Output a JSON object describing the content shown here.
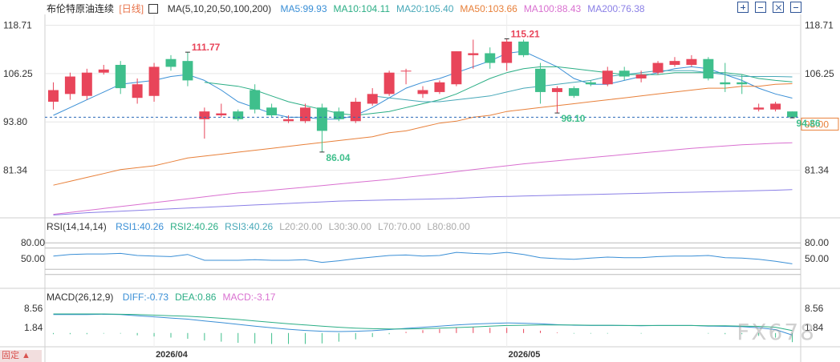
{
  "header": {
    "symbol": "布伦特原油连续",
    "period": "[日线]",
    "ma_label": "MA(5,10,20,50,100,200)",
    "ma_values": [
      {
        "text": "MA5:99.93",
        "color": "#3a8fd6"
      },
      {
        "text": "MA10:104.11",
        "color": "#2bae85"
      },
      {
        "text": "MA20:105.40",
        "color": "#47a8b8"
      },
      {
        "text": "MA50:103.66",
        "color": "#e8803a"
      },
      {
        "text": "MA100:88.43",
        "color": "#d970d0"
      },
      {
        "text": "MA200:76.38",
        "color": "#8a7fe6"
      }
    ]
  },
  "rsi_header": {
    "label": "RSI(14,14,14)",
    "values": [
      {
        "text": "RSI1:40.26",
        "color": "#3a8fd6"
      },
      {
        "text": "RSI2:40.26",
        "color": "#2bae85"
      },
      {
        "text": "RSI3:40.26",
        "color": "#47a8b8"
      },
      {
        "text": "L20:20.00",
        "color": "#aaaaaa"
      },
      {
        "text": "L30:30.00",
        "color": "#aaaaaa"
      },
      {
        "text": "L70:70.00",
        "color": "#aaaaaa"
      },
      {
        "text": "L80:80.00",
        "color": "#aaaaaa"
      }
    ]
  },
  "macd_header": {
    "label": "MACD(26,12,9)",
    "values": [
      {
        "text": "DIFF:-0.73",
        "color": "#3a8fd6"
      },
      {
        "text": "DEA:0.86",
        "color": "#2bae85"
      },
      {
        "text": "MACD:-3.17",
        "color": "#d970d0"
      }
    ]
  },
  "watermark": "FX678",
  "bottom_button": "固定 ▲",
  "colors": {
    "up": "#e8455a",
    "down": "#3fbf8c",
    "grid": "#e6e6e6",
    "dash": "#2a6ab8",
    "current_price": "#e8803a"
  },
  "chart_data": {
    "type": "candlestick",
    "title": "布伦特原油连续 [日线]",
    "price_axis": {
      "ticks": [
        118.71,
        106.25,
        93.8,
        81.34
      ],
      "ylim": [
        69.5,
        121.5
      ]
    },
    "x_labels": [
      {
        "index": 6,
        "label": "2026/04"
      },
      {
        "index": 27,
        "label": "2026/05"
      }
    ],
    "current_price": 95.0,
    "annotations": [
      {
        "index": 8,
        "price": 111.77,
        "label": "111.77",
        "type": "high"
      },
      {
        "index": 16,
        "price": 86.04,
        "label": "86.04",
        "type": "low"
      },
      {
        "index": 27,
        "price": 115.21,
        "label": "115.21",
        "type": "high"
      },
      {
        "index": 30,
        "price": 96.1,
        "label": "96.10",
        "type": "low"
      },
      {
        "index": 44,
        "price": 94.86,
        "label": "94.86",
        "type": "last"
      }
    ],
    "candles": [
      {
        "o": 99.0,
        "h": 104.0,
        "l": 97.0,
        "c": 102.0
      },
      {
        "o": 101.0,
        "h": 106.5,
        "l": 99.5,
        "c": 105.5
      },
      {
        "o": 100.5,
        "h": 107.5,
        "l": 99.5,
        "c": 106.5
      },
      {
        "o": 106.5,
        "h": 108.5,
        "l": 106.0,
        "c": 107.3
      },
      {
        "o": 108.5,
        "h": 109.5,
        "l": 101.0,
        "c": 102.5
      },
      {
        "o": 100.0,
        "h": 105.0,
        "l": 98.5,
        "c": 103.5
      },
      {
        "o": 100.5,
        "h": 109.0,
        "l": 99.0,
        "c": 108.0
      },
      {
        "o": 110.0,
        "h": 111.0,
        "l": 107.0,
        "c": 108.0
      },
      {
        "o": 109.5,
        "h": 111.77,
        "l": 103.0,
        "c": 104.5
      },
      {
        "o": 94.5,
        "h": 97.5,
        "l": 89.5,
        "c": 96.5
      },
      {
        "o": 95.5,
        "h": 98.5,
        "l": 95.0,
        "c": 96.0
      },
      {
        "o": 96.5,
        "h": 97.0,
        "l": 94.0,
        "c": 94.5
      },
      {
        "o": 102.0,
        "h": 103.5,
        "l": 96.0,
        "c": 97.0
      },
      {
        "o": 97.5,
        "h": 98.5,
        "l": 95.0,
        "c": 95.5
      },
      {
        "o": 94.0,
        "h": 95.5,
        "l": 93.5,
        "c": 94.5
      },
      {
        "o": 94.0,
        "h": 98.5,
        "l": 93.5,
        "c": 97.5
      },
      {
        "o": 97.5,
        "h": 98.5,
        "l": 86.04,
        "c": 91.5
      },
      {
        "o": 96.5,
        "h": 97.5,
        "l": 94.0,
        "c": 94.5
      },
      {
        "o": 94.0,
        "h": 100.0,
        "l": 93.5,
        "c": 99.0
      },
      {
        "o": 98.5,
        "h": 102.5,
        "l": 98.0,
        "c": 101.0
      },
      {
        "o": 101.0,
        "h": 107.0,
        "l": 100.5,
        "c": 106.5
      },
      {
        "o": 107.0,
        "h": 107.5,
        "l": 103.5,
        "c": 107.0
      },
      {
        "o": 101.0,
        "h": 103.0,
        "l": 100.0,
        "c": 102.0
      },
      {
        "o": 101.5,
        "h": 104.5,
        "l": 101.0,
        "c": 104.0
      },
      {
        "o": 103.5,
        "h": 112.0,
        "l": 103.0,
        "c": 112.0
      },
      {
        "o": 111.0,
        "h": 115.0,
        "l": 107.5,
        "c": 111.5
      },
      {
        "o": 111.5,
        "h": 113.0,
        "l": 107.5,
        "c": 109.0
      },
      {
        "o": 109.0,
        "h": 115.21,
        "l": 107.0,
        "c": 114.5
      },
      {
        "o": 114.5,
        "h": 115.0,
        "l": 110.5,
        "c": 111.0
      },
      {
        "o": 107.5,
        "h": 109.0,
        "l": 98.5,
        "c": 101.5
      },
      {
        "o": 101.5,
        "h": 103.0,
        "l": 96.1,
        "c": 102.5
      },
      {
        "o": 102.5,
        "h": 103.0,
        "l": 100.0,
        "c": 100.5
      },
      {
        "o": 104.0,
        "h": 104.5,
        "l": 103.0,
        "c": 103.5
      },
      {
        "o": 103.5,
        "h": 108.0,
        "l": 103.0,
        "c": 107.0
      },
      {
        "o": 107.0,
        "h": 108.0,
        "l": 104.5,
        "c": 105.5
      },
      {
        "o": 105.0,
        "h": 107.0,
        "l": 104.0,
        "c": 106.0
      },
      {
        "o": 106.5,
        "h": 109.5,
        "l": 106.0,
        "c": 109.0
      },
      {
        "o": 108.5,
        "h": 110.5,
        "l": 108.0,
        "c": 109.5
      },
      {
        "o": 108.5,
        "h": 111.0,
        "l": 108.0,
        "c": 110.0
      },
      {
        "o": 110.0,
        "h": 110.5,
        "l": 104.5,
        "c": 105.0
      },
      {
        "o": 104.0,
        "h": 109.0,
        "l": 101.5,
        "c": 103.5
      },
      {
        "o": 104.0,
        "h": 106.0,
        "l": 101.0,
        "c": 103.5
      },
      {
        "o": 97.0,
        "h": 98.5,
        "l": 96.5,
        "c": 97.5
      },
      {
        "o": 97.0,
        "h": 99.0,
        "l": 96.5,
        "c": 98.5
      },
      {
        "o": 96.5,
        "h": 96.5,
        "l": 94.86,
        "c": 95.0
      }
    ],
    "ma_series": [
      {
        "name": "MA5",
        "color": "#3a8fd6",
        "values": [
          95.5,
          97.5,
          99.5,
          101.5,
          103.5,
          104.0,
          104.5,
          105.5,
          106.0,
          104.5,
          102.0,
          99.0,
          97.5,
          96.0,
          95.0,
          95.0,
          94.5,
          94.5,
          95.5,
          97.5,
          100.0,
          102.5,
          104.0,
          105.0,
          106.5,
          108.0,
          109.5,
          111.5,
          112.0,
          110.0,
          108.0,
          105.0,
          103.5,
          103.5,
          104.5,
          105.5,
          106.5,
          107.5,
          108.0,
          107.5,
          106.0,
          104.5,
          102.5,
          101.0,
          99.93
        ]
      },
      {
        "name": "MA10",
        "color": "#2bae85",
        "values": [
          null,
          null,
          null,
          null,
          null,
          null,
          null,
          null,
          null,
          104.0,
          103.5,
          103.0,
          102.0,
          100.5,
          99.0,
          98.0,
          97.0,
          96.0,
          95.5,
          96.0,
          96.5,
          97.5,
          98.5,
          99.5,
          101.0,
          103.0,
          105.0,
          106.5,
          107.5,
          108.0,
          108.0,
          107.5,
          107.0,
          106.5,
          106.0,
          106.0,
          106.0,
          106.5,
          106.5,
          106.5,
          106.5,
          106.0,
          105.0,
          104.5,
          104.11
        ]
      },
      {
        "name": "MA20",
        "color": "#47a8b8",
        "values": [
          null,
          null,
          null,
          null,
          null,
          null,
          null,
          null,
          null,
          null,
          null,
          null,
          null,
          null,
          null,
          null,
          null,
          null,
          null,
          100.5,
          100.0,
          99.5,
          99.0,
          99.0,
          99.5,
          100.0,
          100.5,
          101.5,
          102.5,
          103.0,
          103.5,
          104.0,
          104.5,
          105.5,
          106.0,
          106.5,
          107.0,
          107.0,
          107.0,
          106.5,
          106.0,
          105.5,
          105.5,
          105.5,
          105.4
        ]
      },
      {
        "name": "MA50",
        "color": "#e8803a",
        "values": [
          77.5,
          78.5,
          79.5,
          80.5,
          81.5,
          82.0,
          82.5,
          83.5,
          84.5,
          85.0,
          85.5,
          86.0,
          86.5,
          87.0,
          87.5,
          88.0,
          88.5,
          89.0,
          89.5,
          90.0,
          91.0,
          91.5,
          92.5,
          93.5,
          94.0,
          95.0,
          95.5,
          96.5,
          97.0,
          97.5,
          98.0,
          98.5,
          99.0,
          99.5,
          100.0,
          100.5,
          101.0,
          101.5,
          102.0,
          102.5,
          102.5,
          103.0,
          103.0,
          103.5,
          103.66
        ]
      },
      {
        "name": "MA100",
        "color": "#d970d0",
        "values": [
          70.0,
          70.5,
          71.0,
          71.5,
          72.0,
          72.5,
          73.0,
          73.5,
          74.0,
          74.5,
          75.0,
          75.5,
          75.8,
          76.2,
          76.6,
          77.0,
          77.4,
          77.8,
          78.2,
          78.6,
          79.0,
          79.5,
          80.0,
          80.5,
          81.0,
          81.5,
          82.0,
          82.5,
          83.0,
          83.4,
          83.8,
          84.2,
          84.6,
          85.0,
          85.4,
          85.8,
          86.2,
          86.6,
          87.0,
          87.3,
          87.6,
          87.9,
          88.1,
          88.3,
          88.43
        ]
      },
      {
        "name": "MA200",
        "color": "#8a7fe6",
        "values": [
          69.8,
          70.1,
          70.4,
          70.6,
          70.8,
          71.0,
          71.2,
          71.4,
          71.6,
          71.8,
          72.0,
          72.2,
          72.4,
          72.6,
          72.8,
          73.0,
          73.2,
          73.4,
          73.5,
          73.6,
          73.7,
          73.8,
          73.9,
          74.0,
          74.1,
          74.3,
          74.5,
          74.6,
          74.7,
          74.8,
          74.9,
          75.0,
          75.1,
          75.2,
          75.3,
          75.4,
          75.5,
          75.6,
          75.7,
          75.8,
          75.9,
          76.0,
          76.1,
          76.2,
          76.38
        ]
      }
    ],
    "rsi": {
      "axis_ticks": [
        80.0,
        50.0
      ],
      "ylim": [
        0,
        100
      ],
      "levels": [
        20,
        30,
        70,
        80
      ],
      "values": [
        55,
        58,
        59,
        59,
        60,
        56,
        55,
        54,
        58,
        47,
        47,
        47,
        48,
        47,
        47,
        48,
        43,
        46,
        50,
        53,
        56,
        57,
        55,
        56,
        62,
        60,
        59,
        62,
        58,
        52,
        50,
        49,
        51,
        53,
        52,
        52,
        54,
        55,
        55,
        56,
        52,
        51,
        49,
        45,
        40.26
      ]
    },
    "macd": {
      "axis_ticks": [
        8.56,
        1.84
      ],
      "ylim": [
        -4.5,
        10.5
      ],
      "diff": [
        6.4,
        6.4,
        6.4,
        6.5,
        6.4,
        6.0,
        5.6,
        5.2,
        4.8,
        4.2,
        3.6,
        3.0,
        2.4,
        1.8,
        1.3,
        0.9,
        0.6,
        0.5,
        0.6,
        0.8,
        1.2,
        1.6,
        2.0,
        2.4,
        2.8,
        3.1,
        3.3,
        3.5,
        3.4,
        3.2,
        2.9,
        2.7,
        2.6,
        2.6,
        2.6,
        2.5,
        2.6,
        2.6,
        2.6,
        2.4,
        2.3,
        2.2,
        1.8,
        1.2,
        -0.73
      ],
      "dea": [
        6.6,
        6.6,
        6.6,
        6.6,
        6.5,
        6.4,
        6.2,
        6.0,
        5.8,
        5.5,
        5.1,
        4.7,
        4.2,
        3.7,
        3.2,
        2.8,
        2.4,
        2.0,
        1.7,
        1.5,
        1.4,
        1.4,
        1.5,
        1.7,
        1.9,
        2.1,
        2.4,
        2.6,
        2.7,
        2.8,
        2.8,
        2.8,
        2.7,
        2.7,
        2.6,
        2.6,
        2.6,
        2.6,
        2.6,
        2.5,
        2.5,
        2.4,
        2.3,
        2.0,
        0.86
      ],
      "macd": [
        -0.4,
        -0.4,
        -0.4,
        -0.2,
        -0.2,
        -0.8,
        -1.2,
        -1.6,
        -2.0,
        -2.6,
        -3.0,
        -3.4,
        -3.6,
        -3.8,
        -3.8,
        -3.8,
        -3.6,
        -3.0,
        -2.2,
        -1.4,
        -0.4,
        0.4,
        1.0,
        1.4,
        1.8,
        2.0,
        1.8,
        1.8,
        1.4,
        0.8,
        0.2,
        -0.2,
        -0.2,
        -0.2,
        0.0,
        -0.2,
        0.0,
        0.0,
        0.0,
        -0.2,
        -0.4,
        -0.4,
        -1.0,
        -1.6,
        -3.17
      ]
    }
  }
}
